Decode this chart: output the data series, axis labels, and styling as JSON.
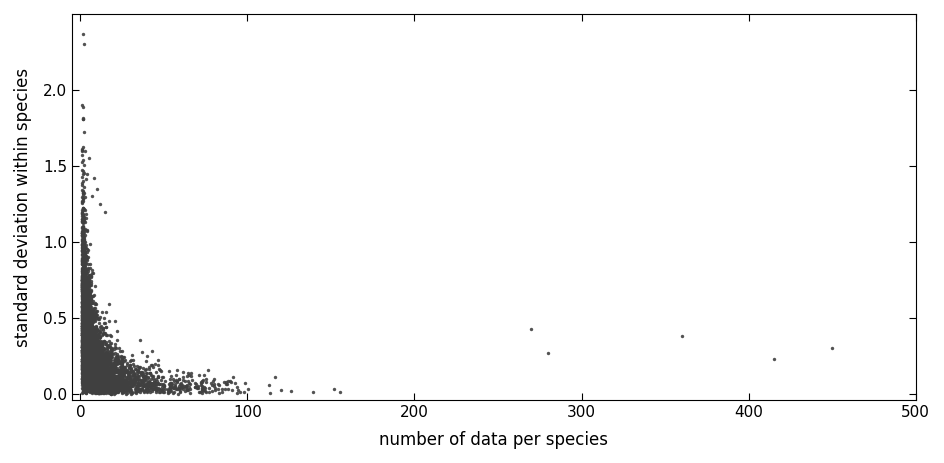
{
  "xlabel": "number of data per species",
  "ylabel": "standard deviation within species",
  "xlim": [
    -5,
    500
  ],
  "ylim": [
    -0.04,
    2.5
  ],
  "xticks": [
    0,
    100,
    200,
    300,
    400,
    500
  ],
  "yticks": [
    0.0,
    0.5,
    1.0,
    1.5,
    2.0
  ],
  "ytick_labels": [
    "0.0",
    "0.5",
    "1.0",
    "1.5",
    "2.0"
  ],
  "point_color": "#404040",
  "point_size": 6,
  "bg_color": "#ffffff",
  "figsize": [
    9.44,
    4.63
  ],
  "dpi": 100,
  "seed": 42,
  "outlier_points": [
    [
      2,
      2.3
    ],
    [
      1,
      1.9
    ],
    [
      3,
      1.6
    ],
    [
      5,
      1.55
    ],
    [
      4,
      1.45
    ],
    [
      8,
      1.42
    ],
    [
      10,
      1.35
    ],
    [
      7,
      1.3
    ],
    [
      12,
      1.25
    ],
    [
      15,
      1.2
    ],
    [
      270,
      0.43
    ],
    [
      280,
      0.27
    ],
    [
      360,
      0.38
    ],
    [
      415,
      0.23
    ],
    [
      450,
      0.3
    ]
  ]
}
